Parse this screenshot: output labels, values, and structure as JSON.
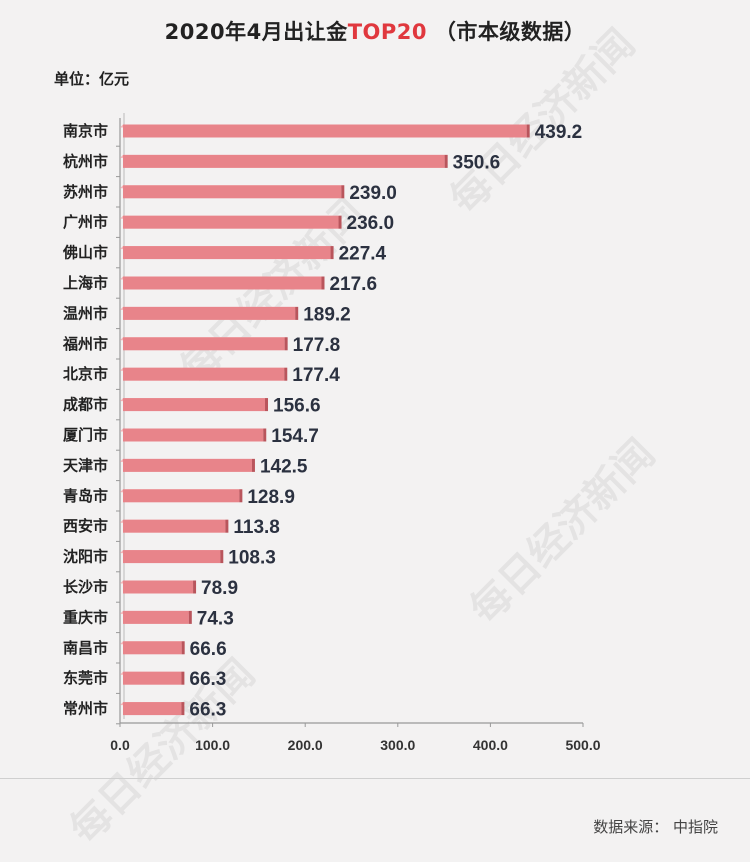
{
  "title": {
    "prefix": "2020年4月出让金",
    "highlight": "TOP20",
    "suffix": " （市本级数据）"
  },
  "unit_label": "单位：亿元",
  "source": "数据来源：  中指院",
  "watermark": "每日经济新闻",
  "colors": {
    "bar": "#e8848a",
    "bar_top": "#f4b4b8",
    "bar_end": "#b9555c",
    "highlight": "#e0383e"
  },
  "chart_data": {
    "type": "bar",
    "orientation": "horizontal",
    "categories": [
      "南京市",
      "杭州市",
      "苏州市",
      "广州市",
      "佛山市",
      "上海市",
      "温州市",
      "福州市",
      "北京市",
      "成都市",
      "厦门市",
      "天津市",
      "青岛市",
      "西安市",
      "沈阳市",
      "长沙市",
      "重庆市",
      "南昌市",
      "东莞市",
      "常州市"
    ],
    "values": [
      439.2,
      350.6,
      239.0,
      236.0,
      227.4,
      217.6,
      189.2,
      177.8,
      177.4,
      156.6,
      154.7,
      142.5,
      128.9,
      113.8,
      108.3,
      78.9,
      74.3,
      66.6,
      66.3,
      66.3
    ],
    "value_labels": [
      "439.2",
      "350.6",
      "239.0",
      "236.0",
      "227.4",
      "217.6",
      "189.2",
      "177.8",
      "177.4",
      "156.6",
      "154.7",
      "142.5",
      "128.9",
      "113.8",
      "108.3",
      "78.9",
      "74.3",
      "66.6",
      "66.3",
      "66.3"
    ],
    "xlim": [
      0,
      500
    ],
    "xticks": [
      "0.0",
      "100.0",
      "200.0",
      "300.0",
      "400.0",
      "500.0"
    ],
    "xtick_values": [
      0,
      100,
      200,
      300,
      400,
      500
    ],
    "xlabel": "",
    "ylabel": "",
    "grid": false,
    "legend": "none"
  }
}
